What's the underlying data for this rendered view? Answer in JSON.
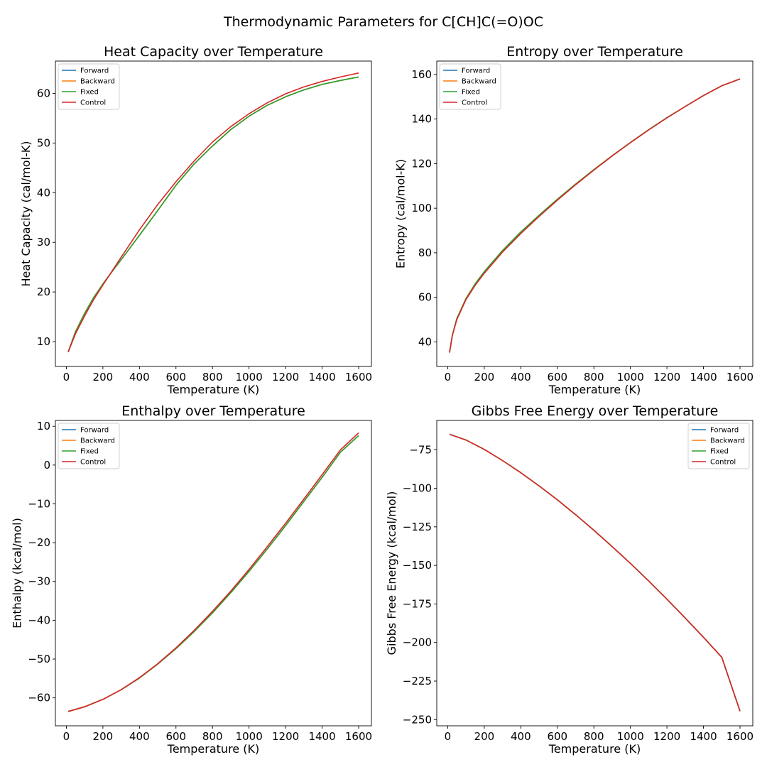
{
  "figure": {
    "suptitle": "Thermodynamic Parameters for C[CH]C(=O)OC"
  },
  "colors": {
    "Forward": "#1f77b4",
    "Backward": "#ff7f0e",
    "Fixed": "#2ca02c",
    "Control": "#d62728"
  },
  "chart_data": [
    {
      "type": "line",
      "title": "Heat Capacity over Temperature",
      "xlabel": "Temperature (K)",
      "ylabel": "Heat Capacity (cal/mol-K)",
      "xlim": [
        -60,
        1670
      ],
      "ylim": [
        5,
        66.5
      ],
      "xticks": [
        0,
        200,
        400,
        600,
        800,
        1000,
        1200,
        1400,
        1600
      ],
      "yticks": [
        10,
        20,
        30,
        40,
        50,
        60
      ],
      "legend_loc": "upper left",
      "grid": false,
      "x": [
        10,
        50,
        100,
        150,
        200,
        250,
        300,
        400,
        500,
        600,
        700,
        800,
        900,
        1000,
        1100,
        1200,
        1300,
        1400,
        1500,
        1600
      ],
      "series": [
        {
          "name": "Forward",
          "values": [
            7.9,
            12.0,
            15.7,
            18.9,
            21.6,
            24.1,
            26.5,
            31.4,
            36.4,
            41.5,
            45.8,
            49.4,
            52.7,
            55.4,
            57.6,
            59.3,
            60.7,
            61.8,
            62.6,
            63.3
          ]
        },
        {
          "name": "Backward",
          "values": [
            7.9,
            12.0,
            15.7,
            18.9,
            21.6,
            24.1,
            26.5,
            31.4,
            36.4,
            41.5,
            45.8,
            49.4,
            52.7,
            55.4,
            57.6,
            59.3,
            60.7,
            61.8,
            62.6,
            63.3
          ]
        },
        {
          "name": "Fixed",
          "values": [
            7.9,
            12.0,
            15.7,
            18.9,
            21.6,
            24.1,
            26.5,
            31.4,
            36.4,
            41.5,
            45.8,
            49.4,
            52.7,
            55.4,
            57.6,
            59.3,
            60.7,
            61.8,
            62.6,
            63.3
          ]
        },
        {
          "name": "Control",
          "values": [
            7.9,
            11.6,
            15.2,
            18.5,
            21.4,
            24.2,
            27.0,
            32.5,
            37.6,
            42.2,
            46.4,
            50.2,
            53.3,
            55.9,
            58.1,
            59.9,
            61.3,
            62.4,
            63.3,
            64.1
          ]
        }
      ]
    },
    {
      "type": "line",
      "title": "Entropy over Temperature",
      "xlabel": "Temperature (K)",
      "ylabel": "Entropy (cal/mol-K)",
      "xlim": [
        -60,
        1670
      ],
      "ylim": [
        29,
        166
      ],
      "xticks": [
        0,
        200,
        400,
        600,
        800,
        1000,
        1200,
        1400,
        1600
      ],
      "yticks": [
        40,
        60,
        80,
        100,
        120,
        140,
        160
      ],
      "legend_loc": "upper left",
      "grid": false,
      "x": [
        10,
        25,
        50,
        100,
        150,
        200,
        300,
        400,
        500,
        600,
        700,
        800,
        900,
        1000,
        1100,
        1200,
        1300,
        1400,
        1500,
        1600
      ],
      "series": [
        {
          "name": "Forward",
          "values": [
            35.2,
            43.0,
            50.5,
            59.5,
            66.0,
            71.5,
            81.0,
            89.3,
            96.8,
            104.0,
            110.8,
            117.3,
            123.5,
            129.5,
            135.2,
            140.6,
            145.6,
            150.5,
            154.9,
            158.0
          ]
        },
        {
          "name": "Backward",
          "values": [
            35.2,
            43.0,
            50.5,
            59.5,
            66.0,
            71.5,
            81.0,
            89.3,
            96.8,
            104.0,
            110.8,
            117.3,
            123.5,
            129.5,
            135.2,
            140.6,
            145.6,
            150.5,
            154.9,
            158.0
          ]
        },
        {
          "name": "Fixed",
          "values": [
            35.2,
            43.0,
            50.5,
            59.5,
            66.0,
            71.5,
            81.0,
            89.3,
            96.8,
            104.0,
            110.8,
            117.3,
            123.5,
            129.5,
            135.2,
            140.6,
            145.6,
            150.5,
            154.9,
            158.0
          ]
        },
        {
          "name": "Control",
          "values": [
            35.2,
            42.8,
            50.1,
            59.0,
            65.4,
            70.8,
            80.3,
            88.6,
            96.3,
            103.6,
            110.5,
            117.1,
            123.4,
            129.4,
            135.1,
            140.5,
            145.6,
            150.5,
            154.9,
            158.0
          ]
        }
      ]
    },
    {
      "type": "line",
      "title": "Enthalpy over Temperature",
      "xlabel": "Temperature (K)",
      "ylabel": "Enthalpy (kcal/mol)",
      "xlim": [
        -60,
        1670
      ],
      "ylim": [
        -67.2,
        11.5
      ],
      "xticks": [
        0,
        200,
        400,
        600,
        800,
        1000,
        1200,
        1400,
        1600
      ],
      "yticks": [
        -60,
        -50,
        -40,
        -30,
        -20,
        -10,
        0,
        10
      ],
      "legend_loc": "upper left",
      "grid": false,
      "x": [
        10,
        100,
        200,
        300,
        400,
        500,
        600,
        700,
        800,
        900,
        1000,
        1100,
        1200,
        1300,
        1400,
        1500,
        1600
      ],
      "series": [
        {
          "name": "Forward",
          "values": [
            -63.5,
            -62.3,
            -60.4,
            -57.9,
            -54.9,
            -51.3,
            -47.3,
            -42.9,
            -38.1,
            -32.9,
            -27.4,
            -21.6,
            -15.6,
            -9.4,
            -3.2,
            3.3,
            7.6
          ]
        },
        {
          "name": "Backward",
          "values": [
            -63.5,
            -62.3,
            -60.4,
            -57.9,
            -54.9,
            -51.3,
            -47.3,
            -42.9,
            -38.1,
            -32.9,
            -27.4,
            -21.6,
            -15.6,
            -9.4,
            -3.2,
            3.3,
            7.6
          ]
        },
        {
          "name": "Fixed",
          "values": [
            -63.5,
            -62.3,
            -60.4,
            -57.9,
            -54.9,
            -51.3,
            -47.3,
            -42.9,
            -38.1,
            -32.9,
            -27.4,
            -21.6,
            -15.6,
            -9.4,
            -3.2,
            3.3,
            7.6
          ]
        },
        {
          "name": "Control",
          "values": [
            -63.5,
            -62.3,
            -60.4,
            -57.9,
            -54.8,
            -51.2,
            -47.1,
            -42.6,
            -37.7,
            -32.5,
            -26.9,
            -21.0,
            -15.0,
            -8.8,
            -2.5,
            3.9,
            8.3
          ]
        }
      ]
    },
    {
      "type": "line",
      "title": "Gibbs Free Energy over Temperature",
      "xlabel": "Temperature (K)",
      "ylabel": "Gibbs Free Energy (kcal/mol)",
      "xlim": [
        -60,
        1670
      ],
      "ylim": [
        -254,
        -56
      ],
      "xticks": [
        0,
        200,
        400,
        600,
        800,
        1000,
        1200,
        1400,
        1600
      ],
      "yticks": [
        -75,
        -100,
        -125,
        -150,
        -175,
        -200,
        -225,
        -250
      ],
      "legend_loc": "upper right",
      "grid": false,
      "x": [
        10,
        100,
        200,
        300,
        400,
        500,
        600,
        700,
        800,
        900,
        1000,
        1100,
        1200,
        1300,
        1400,
        1500,
        1600
      ],
      "series": [
        {
          "name": "Forward",
          "values": [
            -65.0,
            -68.7,
            -74.8,
            -82.0,
            -89.9,
            -98.4,
            -107.5,
            -117.1,
            -127.2,
            -137.8,
            -148.7,
            -160.1,
            -171.9,
            -184.1,
            -196.6,
            -209.5,
            -244.5
          ]
        },
        {
          "name": "Backward",
          "values": [
            -65.0,
            -68.7,
            -74.8,
            -82.0,
            -89.9,
            -98.4,
            -107.5,
            -117.1,
            -127.2,
            -137.8,
            -148.7,
            -160.1,
            -171.9,
            -184.1,
            -196.6,
            -209.5,
            -244.5
          ]
        },
        {
          "name": "Fixed",
          "values": [
            -65.0,
            -68.7,
            -74.8,
            -82.0,
            -89.9,
            -98.4,
            -107.5,
            -117.1,
            -127.2,
            -137.8,
            -148.7,
            -160.1,
            -171.9,
            -184.1,
            -196.6,
            -209.5,
            -244.5
          ]
        },
        {
          "name": "Control",
          "values": [
            -65.0,
            -68.7,
            -74.8,
            -82.0,
            -89.9,
            -98.4,
            -107.5,
            -117.1,
            -127.2,
            -137.8,
            -148.7,
            -160.1,
            -171.9,
            -184.1,
            -196.6,
            -209.5,
            -244.5
          ]
        }
      ]
    }
  ]
}
